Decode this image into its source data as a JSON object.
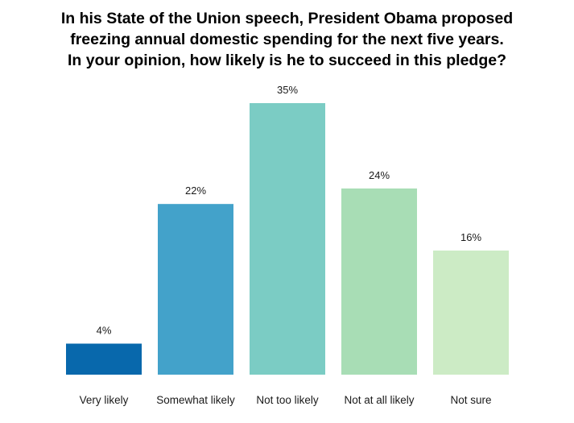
{
  "chart_data": {
    "type": "bar",
    "title_lines": [
      "In his State of the Union speech, President Obama proposed",
      "freezing annual domestic spending for the next five years.",
      "In your opinion, how likely is he to succeed in this pledge?"
    ],
    "categories": [
      "Very likely",
      "Somewhat likely",
      "Not too likely",
      "Not at all likely",
      "Not sure"
    ],
    "values": [
      4,
      22,
      35,
      24,
      16
    ],
    "data_labels": [
      "4%",
      "22%",
      "35%",
      "24%",
      "16%"
    ],
    "colors": [
      "#0868ac",
      "#43a2ca",
      "#7bccc4",
      "#a8ddb5",
      "#ccebc5"
    ],
    "unit": "%",
    "ylim": [
      0,
      35
    ],
    "grid": false,
    "legend": "none",
    "xlabel": "",
    "ylabel": ""
  }
}
